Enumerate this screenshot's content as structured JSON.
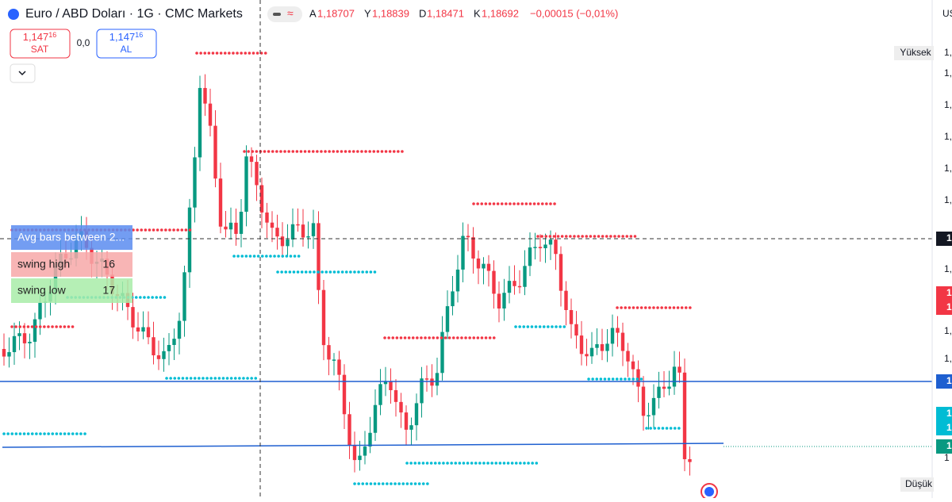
{
  "header": {
    "title": "Euro / ABD Doları · 1G · CMC Markets",
    "ohlc": [
      {
        "key": "A",
        "value": "1,18707"
      },
      {
        "key": "Y",
        "value": "1,18839"
      },
      {
        "key": "D",
        "value": "1,18471"
      },
      {
        "key": "K",
        "value": "1,18692"
      }
    ],
    "change": "−0,00015 (−0,01%)"
  },
  "trade": {
    "sell": {
      "price": "1,147",
      "price_small": "16",
      "label": "SAT"
    },
    "spread": "0,0",
    "buy": {
      "price": "1,147",
      "price_small": "16",
      "label": "AL"
    }
  },
  "table": {
    "header": "Avg bars between 2...",
    "rows": [
      [
        "swing high",
        "16"
      ],
      [
        "swing low",
        "17"
      ]
    ]
  },
  "price_axis": {
    "currency": "US",
    "high_label": "Yüksek",
    "low_label": "Düşük",
    "labels": [
      "1,",
      "1,",
      "1,",
      "1,",
      "1,",
      "1,",
      "1,",
      "1,",
      "1,",
      "1,",
      "1"
    ],
    "badges": [
      "1",
      "1",
      "1",
      "1",
      "1",
      "1",
      "1"
    ]
  }
}
